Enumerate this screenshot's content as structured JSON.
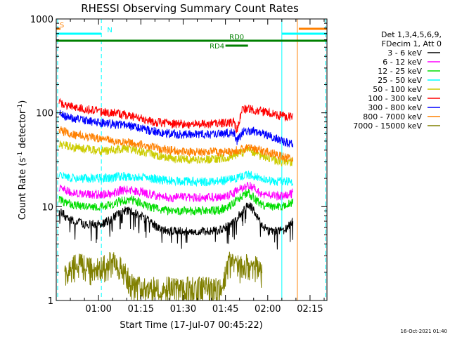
{
  "chart_data": {
    "type": "line",
    "title": "RHESSI Observing Summary Count Rates",
    "xlabel": "Start Time (17-Jul-07 00:45:22)",
    "ylabel_main": "Count Rate (s",
    "ylabel_sup1": "-1",
    "ylabel_mid": " detector",
    "ylabel_sup2": "-1",
    "ylabel_end": ")",
    "footer": "16-Oct-2021 01:40",
    "yscale": "log",
    "ylim": [
      1,
      1000
    ],
    "xlim_minutes": [
      0,
      96
    ],
    "x_ticks": [
      {
        "minute": 15,
        "label": "01:00"
      },
      {
        "minute": 30,
        "label": "01:15"
      },
      {
        "minute": 45,
        "label": "01:30"
      },
      {
        "minute": 60,
        "label": "01:45"
      },
      {
        "minute": 75,
        "label": "02:00"
      },
      {
        "minute": 90,
        "label": "02:15"
      }
    ],
    "y_ticks": [
      {
        "value": 1,
        "label": "1"
      },
      {
        "value": 10,
        "label": "10"
      },
      {
        "value": 100,
        "label": "100"
      },
      {
        "value": 1000,
        "label": "1000"
      }
    ],
    "legend": {
      "position": "right",
      "header": [
        "Det 1,3,4,5,6,9,",
        "FDecim 1, Att 0"
      ],
      "entries": [
        {
          "label": "3 - 6 keV",
          "color": "#000000"
        },
        {
          "label": "6 - 12 keV",
          "color": "#ff00ff"
        },
        {
          "label": "12 - 25 keV",
          "color": "#00dd00"
        },
        {
          "label": "25 - 50 keV",
          "color": "#00ffff"
        },
        {
          "label": "50 - 100 keV",
          "color": "#cccc00"
        },
        {
          "label": "100 - 300 keV",
          "color": "#ff0000"
        },
        {
          "label": "300 - 800 keV",
          "color": "#0000ff"
        },
        {
          "label": "800 - 7000 keV",
          "color": "#ff8000"
        },
        {
          "label": "7000 - 15000 keV",
          "color": "#808000"
        }
      ]
    },
    "series": [
      {
        "name": "3 - 6 keV",
        "color": "#000000",
        "x": [
          1,
          3,
          6,
          10,
          13,
          16,
          20,
          23,
          26,
          30,
          33,
          36,
          40,
          44,
          48,
          52,
          56,
          60,
          63,
          66,
          68,
          70,
          72,
          75,
          78,
          80,
          82,
          84
        ],
        "y": [
          9,
          8,
          7,
          6.5,
          6.5,
          6.5,
          7.5,
          9,
          9,
          8,
          7,
          6,
          5.5,
          5.5,
          5.5,
          5.5,
          5.5,
          6,
          7,
          9,
          11,
          9,
          7,
          5.5,
          5.5,
          5.5,
          6,
          7
        ]
      },
      {
        "name": "6 - 12 keV",
        "color": "#ff00ff",
        "x": [
          1,
          3,
          6,
          10,
          13,
          16,
          20,
          23,
          26,
          30,
          33,
          36,
          40,
          44,
          48,
          52,
          56,
          60,
          63,
          66,
          68,
          70,
          72,
          75,
          78,
          80,
          82,
          84
        ],
        "y": [
          16,
          15,
          14,
          13.5,
          13.5,
          13.5,
          14,
          15,
          15,
          14.5,
          13.5,
          13,
          12.5,
          12.5,
          12.5,
          12.5,
          12.5,
          13,
          14,
          16,
          17,
          16,
          14,
          13,
          13,
          13,
          13,
          14
        ]
      },
      {
        "name": "12 - 25 keV",
        "color": "#00dd00",
        "x": [
          1,
          3,
          6,
          10,
          13,
          16,
          20,
          23,
          26,
          30,
          33,
          36,
          40,
          44,
          48,
          52,
          56,
          60,
          63,
          66,
          68,
          70,
          72,
          75,
          78,
          80,
          82,
          84
        ],
        "y": [
          12,
          11,
          10.5,
          10,
          10,
          10,
          10.5,
          11.5,
          12,
          11,
          10,
          9.5,
          9,
          9,
          9,
          9,
          9,
          9.5,
          11,
          13,
          14,
          12.5,
          11,
          10,
          10,
          10,
          10.5,
          11
        ]
      },
      {
        "name": "25 - 50 keV",
        "color": "#00ffff",
        "x": [
          1,
          3,
          6,
          10,
          13,
          16,
          20,
          23,
          26,
          30,
          33,
          36,
          40,
          44,
          48,
          52,
          56,
          60,
          63,
          66,
          68,
          70,
          72,
          75,
          78,
          80,
          82,
          84
        ],
        "y": [
          22,
          21,
          20,
          20,
          20,
          20,
          20.5,
          21,
          21,
          20.5,
          20,
          19.5,
          19,
          18.5,
          18.5,
          18.5,
          18.5,
          19,
          20,
          21,
          22,
          21,
          20,
          19,
          18.5,
          18.5,
          18.5,
          18.5
        ]
      },
      {
        "name": "50 - 100 keV",
        "color": "#cccc00",
        "x": [
          1,
          3,
          6,
          10,
          13,
          16,
          20,
          23,
          26,
          30,
          33,
          36,
          40,
          44,
          48,
          52,
          56,
          60,
          63,
          66,
          68,
          70,
          72,
          75,
          78,
          80,
          82,
          84
        ],
        "y": [
          47,
          45,
          43,
          41,
          40,
          39,
          40,
          41,
          41,
          39,
          37,
          35,
          33,
          32,
          32,
          32,
          32,
          33,
          35,
          38,
          40,
          38,
          35,
          33,
          31,
          30,
          30,
          30
        ]
      },
      {
        "name": "100 - 300 keV",
        "color": "#ff0000",
        "x": [
          1,
          3,
          6,
          10,
          13,
          16,
          20,
          23,
          26,
          30,
          33,
          36,
          40,
          44,
          48,
          52,
          56,
          60,
          63,
          64,
          66,
          68,
          70,
          72,
          75,
          78,
          80,
          82,
          84
        ],
        "y": [
          130,
          122,
          115,
          110,
          106,
          102,
          99,
          97,
          93,
          87,
          82,
          79,
          77,
          76,
          76,
          76,
          76,
          78,
          80,
          65,
          108,
          110,
          108,
          105,
          100,
          95,
          93,
          90,
          92
        ]
      },
      {
        "name": "300 - 800 keV",
        "color": "#0000ff",
        "x": [
          1,
          3,
          6,
          10,
          13,
          16,
          20,
          23,
          26,
          30,
          33,
          36,
          40,
          44,
          48,
          52,
          56,
          60,
          63,
          64,
          66,
          68,
          70,
          72,
          75,
          78,
          80,
          82,
          84
        ],
        "y": [
          98,
          92,
          87,
          83,
          80,
          78,
          76,
          74,
          72,
          68,
          65,
          62,
          60,
          59,
          59,
          59,
          59,
          60,
          62,
          50,
          62,
          64,
          64,
          62,
          58,
          54,
          50,
          48,
          47
        ]
      },
      {
        "name": "800 - 7000 keV",
        "color": "#ff8000",
        "x": [
          1,
          3,
          6,
          10,
          13,
          16,
          20,
          23,
          26,
          30,
          33,
          36,
          40,
          44,
          48,
          52,
          56,
          60,
          63,
          66,
          68,
          70,
          72,
          75,
          78,
          80,
          82,
          84
        ],
        "y": [
          68,
          63,
          59,
          56,
          54,
          52,
          50,
          49,
          48,
          46,
          44,
          42,
          40,
          39,
          38,
          38,
          38,
          38,
          39,
          41,
          42,
          41,
          40,
          38,
          36,
          34,
          33,
          32
        ]
      },
      {
        "name": "7000 - 15000 keV",
        "color": "#808000",
        "x": [
          3,
          8,
          12,
          17,
          20,
          24,
          26,
          28,
          33,
          38,
          44,
          48,
          52,
          56,
          59,
          61,
          63,
          65,
          67,
          69,
          71,
          73
        ],
        "y": [
          1.5,
          1.8,
          1.6,
          1.7,
          1.9,
          1.5,
          1.2,
          1.0,
          1.0,
          1.0,
          1.0,
          1.0,
          1.0,
          1.0,
          1.0,
          1.8,
          2.0,
          1.6,
          1.9,
          1.5,
          1.7,
          1.4
        ]
      }
    ],
    "state_flags": [
      {
        "label": "S",
        "color": "#ff8000",
        "spans": [
          [
            0,
            1.5
          ],
          [
            86,
            96
          ]
        ]
      },
      {
        "label": "N",
        "color": "#00ffff",
        "spans": [
          [
            0,
            16
          ],
          [
            80,
            96
          ]
        ]
      },
      {
        "label": "RD0",
        "color": "#008000",
        "spans": [
          [
            0,
            96
          ]
        ]
      },
      {
        "label": "RD4",
        "color": "#008000",
        "spans": [
          [
            60,
            68
          ]
        ]
      }
    ],
    "markers": [
      {
        "minute": 0.5,
        "color": "#00ffff",
        "style": "dashed"
      },
      {
        "minute": 16,
        "color": "#00ffff",
        "style": "dashed"
      },
      {
        "minute": 80,
        "color": "#00ffff",
        "style": "solid"
      },
      {
        "minute": 85.5,
        "color": "#ff8000",
        "style": "solid"
      },
      {
        "minute": 95.5,
        "color": "#00ffff",
        "style": "dashed"
      }
    ]
  }
}
